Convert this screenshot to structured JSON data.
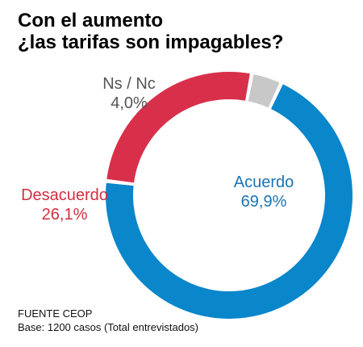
{
  "chart_data": {
    "type": "pie",
    "title": [
      "Con el aumento",
      "¿las tarifas son impagables?"
    ],
    "slices": [
      {
        "label": "Acuerdo",
        "value": 69.9,
        "display": "69,9%",
        "color": "#0a86cb",
        "label_color": "#1b74b3"
      },
      {
        "label": "Desacuerdo",
        "value": 26.1,
        "display": "26,1%",
        "color": "#d8304a",
        "label_color": "#d02f3f"
      },
      {
        "label": "Ns / Nc",
        "value": 4.0,
        "display": "4,0%",
        "color": "#c8c8c8",
        "label_color": "#555555"
      }
    ],
    "donut": true,
    "source": [
      "FUENTE CEOP",
      "Base: 1200 casos (Total entrevistados)"
    ]
  }
}
